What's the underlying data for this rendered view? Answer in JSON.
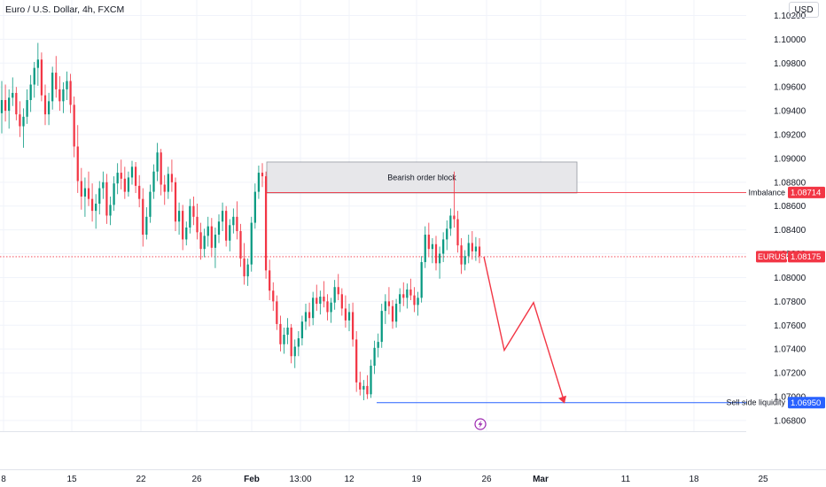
{
  "header": {
    "title": "Euro / U.S. Dollar, 4h, FXCM"
  },
  "currency_button": "USD",
  "colors": {
    "up": "#089981",
    "down": "#f23645",
    "box": "#e7e7ea",
    "sell_line": "#2962ff",
    "path": "#f23645"
  },
  "chart_data": {
    "type": "candlestick",
    "title": "Euro / U.S. Dollar, 4h, FXCM",
    "symbol": "EURUSD",
    "ylim": [
      1.0671,
      1.1033
    ],
    "y_ticks": [
      "1.10200",
      "1.10000",
      "1.09800",
      "1.09600",
      "1.09400",
      "1.09200",
      "1.09000",
      "1.08800",
      "1.08600",
      "1.08400",
      "1.08200",
      "1.08000",
      "1.07800",
      "1.07600",
      "1.07400",
      "1.07200",
      "1.07000",
      "1.06800"
    ],
    "x_ticks": [
      "8",
      "15",
      "22",
      "26",
      "Feb",
      "13:00",
      "12",
      "19",
      "26",
      "Mar",
      "11",
      "18",
      "25"
    ],
    "last_price": {
      "label": "EURUSD",
      "value": "1.08175",
      "price": 1.08175
    },
    "annotations": [
      {
        "kind": "zone",
        "label": "Bearish order block",
        "top": 1.0897,
        "bottom": 1.0871
      },
      {
        "kind": "level",
        "label": "Imbalance",
        "value": "1.08714",
        "price": 1.08714
      },
      {
        "kind": "level",
        "label": "Sell side liquidity",
        "value": "1.06950",
        "price": 1.0695
      }
    ],
    "projection": [
      1.08175,
      1.0739,
      1.0779,
      1.0695
    ],
    "ohlc": [
      [
        1.0938,
        1.0965,
        1.0921,
        1.0949
      ],
      [
        1.0949,
        1.0962,
        1.0931,
        1.094
      ],
      [
        1.094,
        1.0958,
        1.0925,
        1.0951
      ],
      [
        1.0951,
        1.0968,
        1.0944,
        1.0955
      ],
      [
        1.0955,
        1.096,
        1.0932,
        1.0937
      ],
      [
        1.0937,
        1.0948,
        1.0918,
        1.0927
      ],
      [
        1.0927,
        1.0942,
        1.0909,
        1.0935
      ],
      [
        1.0935,
        1.0958,
        1.0929,
        1.0949
      ],
      [
        1.0949,
        1.097,
        1.0939,
        1.0962
      ],
      [
        1.0962,
        1.0981,
        1.0951,
        1.0976
      ],
      [
        1.0976,
        1.0997,
        1.0961,
        1.0983
      ],
      [
        1.0983,
        1.0989,
        1.0948,
        1.0953
      ],
      [
        1.0953,
        1.0962,
        1.0928,
        1.0937
      ],
      [
        1.0937,
        1.0955,
        1.0928,
        1.0948
      ],
      [
        1.0948,
        1.0977,
        1.0941,
        1.0972
      ],
      [
        1.0972,
        1.0986,
        1.0951,
        1.0958
      ],
      [
        1.0958,
        1.0969,
        1.094,
        1.0948
      ],
      [
        1.0948,
        1.0964,
        1.0938,
        1.0958
      ],
      [
        1.0958,
        1.0973,
        1.0949,
        1.0965
      ],
      [
        1.0965,
        1.0971,
        1.0938,
        1.0945
      ],
      [
        1.0945,
        1.0952,
        1.0901,
        1.091
      ],
      [
        1.091,
        1.0928,
        1.0871,
        1.0881
      ],
      [
        1.0881,
        1.0892,
        1.0857,
        1.0868
      ],
      [
        1.0868,
        1.0884,
        1.0851,
        1.0875
      ],
      [
        1.0875,
        1.0889,
        1.086,
        1.0866
      ],
      [
        1.0866,
        1.0879,
        1.0847,
        1.0856
      ],
      [
        1.0856,
        1.087,
        1.0841,
        1.0862
      ],
      [
        1.0862,
        1.0881,
        1.0853,
        1.0875
      ],
      [
        1.0875,
        1.0889,
        1.0866,
        1.088
      ],
      [
        1.088,
        1.0887,
        1.0845,
        1.0852
      ],
      [
        1.0852,
        1.0868,
        1.0844,
        1.0861
      ],
      [
        1.0861,
        1.0885,
        1.0856,
        1.0879
      ],
      [
        1.0879,
        1.0896,
        1.087,
        1.0888
      ],
      [
        1.0888,
        1.0899,
        1.0874,
        1.0883
      ],
      [
        1.0883,
        1.0893,
        1.0866,
        1.0872
      ],
      [
        1.0872,
        1.0889,
        1.0868,
        1.0884
      ],
      [
        1.0884,
        1.0898,
        1.0878,
        1.0893
      ],
      [
        1.0893,
        1.0897,
        1.0871,
        1.0877
      ],
      [
        1.0877,
        1.0886,
        1.0859,
        1.0866
      ],
      [
        1.0866,
        1.0875,
        1.0826,
        1.0836
      ],
      [
        1.0836,
        1.0859,
        1.0832,
        1.0851
      ],
      [
        1.0851,
        1.0878,
        1.0846,
        1.0872
      ],
      [
        1.0872,
        1.0895,
        1.0866,
        1.0889
      ],
      [
        1.0889,
        1.0913,
        1.0881,
        1.0905
      ],
      [
        1.0905,
        1.0908,
        1.0869,
        1.0878
      ],
      [
        1.0878,
        1.0886,
        1.0861,
        1.0872
      ],
      [
        1.0872,
        1.0893,
        1.0866,
        1.0887
      ],
      [
        1.0887,
        1.0899,
        1.0872,
        1.088
      ],
      [
        1.088,
        1.0884,
        1.0839,
        1.0847
      ],
      [
        1.0847,
        1.0863,
        1.0836,
        1.0856
      ],
      [
        1.0856,
        1.0861,
        1.0823,
        1.0832
      ],
      [
        1.0832,
        1.0847,
        1.0827,
        1.0842
      ],
      [
        1.0842,
        1.0866,
        1.0837,
        1.086
      ],
      [
        1.086,
        1.0868,
        1.0844,
        1.0851
      ],
      [
        1.0851,
        1.0862,
        1.0832,
        1.0838
      ],
      [
        1.0838,
        1.0846,
        1.0815,
        1.0824
      ],
      [
        1.0824,
        1.0841,
        1.0817,
        1.0835
      ],
      [
        1.0835,
        1.0851,
        1.0826,
        1.0843
      ],
      [
        1.0843,
        1.085,
        1.0818,
        1.0825
      ],
      [
        1.0825,
        1.0842,
        1.0808,
        1.0836
      ],
      [
        1.0836,
        1.0853,
        1.0829,
        1.0847
      ],
      [
        1.0847,
        1.0863,
        1.0839,
        1.0856
      ],
      [
        1.0856,
        1.086,
        1.0826,
        1.0831
      ],
      [
        1.0831,
        1.0849,
        1.0822,
        1.0844
      ],
      [
        1.0844,
        1.0858,
        1.0837,
        1.0851
      ],
      [
        1.0851,
        1.0864,
        1.0832,
        1.0839
      ],
      [
        1.0839,
        1.0845,
        1.0809,
        1.0816
      ],
      [
        1.0816,
        1.0829,
        1.0794,
        1.0801
      ],
      [
        1.0801,
        1.0816,
        1.0793,
        1.0811
      ],
      [
        1.0811,
        1.0851,
        1.0805,
        1.0846
      ],
      [
        1.0846,
        1.0879,
        1.0841,
        1.0872
      ],
      [
        1.0872,
        1.0894,
        1.0866,
        1.0888
      ],
      [
        1.0888,
        1.0896,
        1.0876,
        1.0885
      ],
      [
        1.0885,
        1.0889,
        1.0799,
        1.0806
      ],
      [
        1.0806,
        1.0815,
        1.0781,
        1.0789
      ],
      [
        1.0789,
        1.0796,
        1.0772,
        1.078
      ],
      [
        1.078,
        1.0785,
        1.0756,
        1.0761
      ],
      [
        1.0761,
        1.0768,
        1.0738,
        1.0744
      ],
      [
        1.0744,
        1.0758,
        1.0736,
        1.0752
      ],
      [
        1.0752,
        1.0766,
        1.0744,
        1.0758
      ],
      [
        1.0758,
        1.0761,
        1.0728,
        1.0734
      ],
      [
        1.0734,
        1.0748,
        1.0724,
        1.0742
      ],
      [
        1.0742,
        1.0755,
        1.0734,
        1.0749
      ],
      [
        1.0749,
        1.0768,
        1.0743,
        1.0763
      ],
      [
        1.0763,
        1.0778,
        1.0756,
        1.0771
      ],
      [
        1.0771,
        1.0779,
        1.0759,
        1.0766
      ],
      [
        1.0766,
        1.0788,
        1.076,
        1.0783
      ],
      [
        1.0783,
        1.0794,
        1.0772,
        1.0778
      ],
      [
        1.0778,
        1.0789,
        1.0769,
        1.0784
      ],
      [
        1.0784,
        1.0797,
        1.0775,
        1.078
      ],
      [
        1.078,
        1.0786,
        1.0764,
        1.0771
      ],
      [
        1.0771,
        1.0783,
        1.0762,
        1.0779
      ],
      [
        1.0779,
        1.0798,
        1.0773,
        1.0792
      ],
      [
        1.0792,
        1.0803,
        1.0781,
        1.0786
      ],
      [
        1.0786,
        1.0791,
        1.0768,
        1.0774
      ],
      [
        1.0774,
        1.0785,
        1.0758,
        1.0764
      ],
      [
        1.0764,
        1.0778,
        1.0755,
        1.0771
      ],
      [
        1.0771,
        1.0779,
        1.0742,
        1.0748
      ],
      [
        1.0748,
        1.0755,
        1.0704,
        1.0712
      ],
      [
        1.0712,
        1.0721,
        1.0701,
        1.0706
      ],
      [
        1.0706,
        1.0714,
        1.0697,
        1.0709
      ],
      [
        1.0709,
        1.0718,
        1.0698,
        1.0702
      ],
      [
        1.0702,
        1.0731,
        1.0699,
        1.0726
      ],
      [
        1.0726,
        1.0747,
        1.0719,
        1.0741
      ],
      [
        1.0741,
        1.0753,
        1.0733,
        1.0746
      ],
      [
        1.0746,
        1.0778,
        1.0741,
        1.0772
      ],
      [
        1.0772,
        1.0786,
        1.0761,
        1.078
      ],
      [
        1.078,
        1.0792,
        1.0769,
        1.0776
      ],
      [
        1.0776,
        1.0781,
        1.0757,
        1.0763
      ],
      [
        1.0763,
        1.0782,
        1.0758,
        1.0778
      ],
      [
        1.0778,
        1.0791,
        1.0771,
        1.0786
      ],
      [
        1.0786,
        1.0796,
        1.0776,
        1.0783
      ],
      [
        1.0783,
        1.0795,
        1.0774,
        1.079
      ],
      [
        1.079,
        1.0799,
        1.0781,
        1.0785
      ],
      [
        1.0785,
        1.0792,
        1.0771,
        1.0777
      ],
      [
        1.0777,
        1.0788,
        1.0768,
        1.0783
      ],
      [
        1.0783,
        1.0818,
        1.0779,
        1.0813
      ],
      [
        1.0813,
        1.0843,
        1.0808,
        1.0836
      ],
      [
        1.0836,
        1.0846,
        1.0818,
        1.0824
      ],
      [
        1.0824,
        1.0833,
        1.0812,
        1.0828
      ],
      [
        1.0828,
        1.0835,
        1.0806,
        1.0812
      ],
      [
        1.0812,
        1.0826,
        1.0799,
        1.082
      ],
      [
        1.082,
        1.0838,
        1.0813,
        1.0832
      ],
      [
        1.0832,
        1.0848,
        1.0823,
        1.0841
      ],
      [
        1.0841,
        1.0858,
        1.0835,
        1.0852
      ],
      [
        1.0852,
        1.0889,
        1.0842,
        1.0849
      ],
      [
        1.0849,
        1.0856,
        1.0821,
        1.0827
      ],
      [
        1.0827,
        1.0833,
        1.0803,
        1.0811
      ],
      [
        1.0811,
        1.0823,
        1.0806,
        1.0818
      ],
      [
        1.0818,
        1.0836,
        1.0812,
        1.0829
      ],
      [
        1.0829,
        1.0839,
        1.0815,
        1.0822
      ],
      [
        1.0822,
        1.0834,
        1.0814,
        1.0826
      ],
      [
        1.0826,
        1.0833,
        1.0812,
        1.0818
      ]
    ]
  }
}
